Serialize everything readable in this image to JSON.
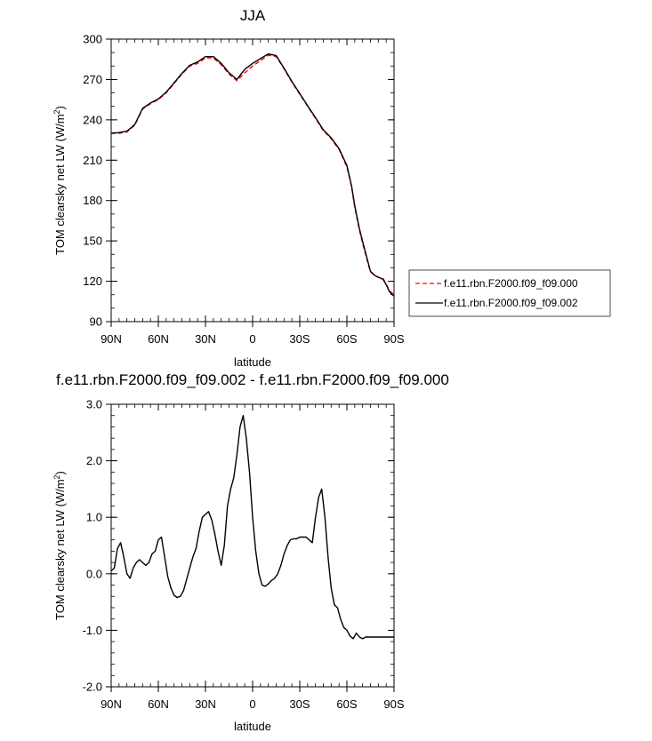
{
  "chart_data": [
    {
      "type": "line",
      "title": "JJA",
      "xlabel": "latitude",
      "ylabel": "TOM clearsky net LW (W/m²)",
      "ylim": [
        90,
        300
      ],
      "yticks": [
        90,
        120,
        150,
        180,
        210,
        240,
        270,
        300
      ],
      "xlim": [
        90,
        -90
      ],
      "xticks": [
        90,
        60,
        30,
        0,
        -30,
        -60,
        -90
      ],
      "xtick_labels": [
        "90N",
        "60N",
        "30N",
        "0",
        "30S",
        "60S",
        "90S"
      ],
      "legend_position": "right",
      "series": [
        {
          "name": "f.e11.rbn.F2000.f09_f09.000",
          "color": "#ff0000",
          "dash": "dashed",
          "x": [
            90,
            85,
            80,
            75,
            70,
            65,
            60,
            55,
            50,
            45,
            40,
            35,
            30,
            25,
            20,
            15,
            10,
            5,
            0,
            -5,
            -10,
            -15,
            -20,
            -25,
            -30,
            -35,
            -40,
            -45,
            -50,
            -55,
            -60,
            -63,
            -65,
            -68,
            -70,
            -73,
            -75,
            -78,
            -80,
            -83,
            -85,
            -87,
            -88,
            -90
          ],
          "y": [
            230,
            230,
            231,
            236,
            248,
            252,
            255,
            260,
            267,
            274,
            280,
            282,
            286,
            286,
            281,
            274,
            269,
            275,
            280,
            284,
            288,
            287,
            278,
            268,
            259,
            250,
            241,
            232,
            226,
            218,
            205,
            190,
            175,
            158,
            148,
            135,
            127,
            124,
            123,
            122,
            118,
            113,
            112,
            110
          ]
        },
        {
          "name": "f.e11.rbn.F2000.f09_f09.002",
          "color": "#000000",
          "dash": "solid",
          "x": [
            90,
            85,
            80,
            75,
            70,
            65,
            60,
            55,
            50,
            45,
            40,
            35,
            30,
            25,
            20,
            15,
            10,
            5,
            0,
            -5,
            -10,
            -15,
            -20,
            -25,
            -30,
            -35,
            -40,
            -45,
            -50,
            -55,
            -60,
            -63,
            -65,
            -68,
            -70,
            -73,
            -75,
            -78,
            -80,
            -83,
            -85,
            -87,
            -88,
            -90
          ],
          "y": [
            230,
            230.5,
            231.5,
            236.5,
            248.5,
            252.5,
            255.5,
            260.5,
            267.5,
            274.5,
            280.5,
            283,
            287,
            287,
            282,
            275,
            270,
            277.5,
            282,
            285.5,
            289,
            287.7,
            278.5,
            268.5,
            259.5,
            250.5,
            241.6,
            232.6,
            226.6,
            218.6,
            206,
            190.7,
            176.2,
            159,
            149.5,
            136.2,
            127.4,
            124.1,
            123,
            121.5,
            117.4,
            112.4,
            111,
            109
          ]
        }
      ]
    },
    {
      "type": "line",
      "title": "f.e11.rbn.F2000.f09_f09.002 - f.e11.rbn.F2000.f09_f09.000",
      "xlabel": "latitude",
      "ylabel": "TOM clearsky net LW (W/m²)",
      "ylim": [
        -2.0,
        3.0
      ],
      "yticks": [
        -2.0,
        -1.0,
        0.0,
        1.0,
        2.0,
        3.0
      ],
      "ytick_labels": [
        "-2.0",
        "-1.0",
        "0.0",
        "1.0",
        "2.0",
        "3.0"
      ],
      "xlim": [
        90,
        -90
      ],
      "xticks": [
        90,
        60,
        30,
        0,
        -30,
        -60,
        -90
      ],
      "xtick_labels": [
        "90N",
        "60N",
        "30N",
        "0",
        "30S",
        "60S",
        "90S"
      ],
      "series": [
        {
          "color": "#000000",
          "x": [
            90,
            88,
            86,
            84,
            82,
            80,
            78,
            76,
            74,
            72,
            70,
            68,
            66,
            64,
            62,
            60,
            58,
            56,
            54,
            52,
            50,
            48,
            46,
            44,
            42,
            40,
            38,
            36,
            34,
            32,
            30,
            28,
            26,
            24,
            22,
            20,
            18,
            16,
            14,
            12,
            10,
            8,
            6,
            4,
            2,
            0,
            -2,
            -4,
            -6,
            -8,
            -10,
            -12,
            -14,
            -16,
            -18,
            -20,
            -22,
            -24,
            -26,
            -28,
            -30,
            -32,
            -34,
            -36,
            -38,
            -40,
            -42,
            -44,
            -46,
            -48,
            -50,
            -52,
            -54,
            -56,
            -58,
            -60,
            -62,
            -64,
            -66,
            -68,
            -70,
            -72,
            -74,
            -76,
            -78,
            -80,
            -82,
            -84,
            -86,
            -88,
            -90
          ],
          "y": [
            0.05,
            0.1,
            0.45,
            0.55,
            0.3,
            0.0,
            -0.08,
            0.1,
            0.2,
            0.25,
            0.2,
            0.15,
            0.2,
            0.35,
            0.4,
            0.6,
            0.65,
            0.3,
            -0.05,
            -0.25,
            -0.38,
            -0.42,
            -0.4,
            -0.3,
            -0.1,
            0.1,
            0.3,
            0.45,
            0.75,
            1.0,
            1.05,
            1.1,
            0.95,
            0.7,
            0.4,
            0.15,
            0.5,
            1.2,
            1.5,
            1.7,
            2.1,
            2.6,
            2.8,
            2.4,
            1.8,
            1.0,
            0.4,
            0.0,
            -0.2,
            -0.22,
            -0.18,
            -0.12,
            -0.08,
            0.0,
            0.15,
            0.35,
            0.5,
            0.6,
            0.62,
            0.62,
            0.65,
            0.65,
            0.65,
            0.6,
            0.55,
            1.0,
            1.35,
            1.5,
            1.0,
            0.3,
            -0.25,
            -0.55,
            -0.6,
            -0.8,
            -0.95,
            -1.0,
            -1.1,
            -1.15,
            -1.05,
            -1.12,
            -1.15,
            -1.12,
            -1.12,
            -1.12,
            -1.12,
            -1.12,
            -1.12,
            -1.12,
            -1.12,
            -1.12,
            -1.12
          ]
        }
      ]
    }
  ]
}
